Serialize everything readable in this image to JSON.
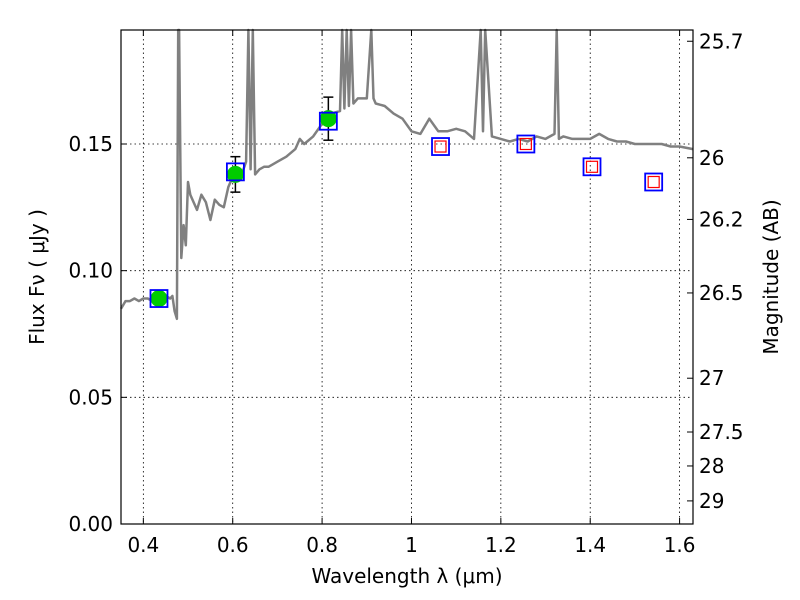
{
  "chart_data": {
    "type": "scatter",
    "xlabel": "Wavelength  λ (μm)",
    "ylabel": "Flux  Fν  ( μJy )",
    "y2label": "Magnitude (AB)",
    "xlim": [
      0.35,
      1.63
    ],
    "ylim": [
      0.0,
      0.195
    ],
    "grid": true,
    "x_ticks": [
      {
        "value": 0.4,
        "label": "0.4"
      },
      {
        "value": 0.6,
        "label": "0.6"
      },
      {
        "value": 0.8,
        "label": "0.8"
      },
      {
        "value": 1.0,
        "label": "1"
      },
      {
        "value": 1.2,
        "label": "1.2"
      },
      {
        "value": 1.4,
        "label": "1.4"
      },
      {
        "value": 1.6,
        "label": "1.6"
      }
    ],
    "y_ticks": [
      {
        "value": 0.0,
        "label": "0.00"
      },
      {
        "value": 0.05,
        "label": "0.05"
      },
      {
        "value": 0.1,
        "label": "0.10"
      },
      {
        "value": 0.15,
        "label": "0.15"
      }
    ],
    "y2_ticks": [
      {
        "value": 25.7,
        "label": "25.7"
      },
      {
        "value": 26.0,
        "label": "26"
      },
      {
        "value": 26.2,
        "label": "26.2"
      },
      {
        "value": 26.5,
        "label": "26.5"
      },
      {
        "value": 27.0,
        "label": "27"
      },
      {
        "value": 27.5,
        "label": "27.5"
      },
      {
        "value": 28.0,
        "label": "28"
      },
      {
        "value": 29.0,
        "label": "29"
      }
    ],
    "colors": {
      "spectrum": "#808080",
      "observed": "#00cc00",
      "errorbar": "#000000",
      "model_box": "#0000ff",
      "upper_box": "#ff0000"
    },
    "spectrum": {
      "x": [
        0.35,
        0.36,
        0.37,
        0.38,
        0.39,
        0.4,
        0.41,
        0.42,
        0.43,
        0.44,
        0.45,
        0.46,
        0.465,
        0.47,
        0.475,
        0.478,
        0.48,
        0.485,
        0.49,
        0.495,
        0.5,
        0.505,
        0.51,
        0.52,
        0.53,
        0.54,
        0.55,
        0.56,
        0.57,
        0.58,
        0.59,
        0.6,
        0.61,
        0.62,
        0.63,
        0.635,
        0.64,
        0.645,
        0.65,
        0.66,
        0.67,
        0.68,
        0.69,
        0.7,
        0.72,
        0.74,
        0.75,
        0.76,
        0.78,
        0.8,
        0.82,
        0.84,
        0.845,
        0.85,
        0.855,
        0.86,
        0.865,
        0.87,
        0.88,
        0.9,
        0.91,
        0.915,
        0.92,
        0.94,
        0.96,
        0.98,
        1.0,
        1.02,
        1.04,
        1.06,
        1.08,
        1.1,
        1.12,
        1.14,
        1.155,
        1.16,
        1.165,
        1.18,
        1.2,
        1.22,
        1.24,
        1.26,
        1.28,
        1.3,
        1.32,
        1.325,
        1.33,
        1.34,
        1.36,
        1.38,
        1.4,
        1.42,
        1.44,
        1.46,
        1.48,
        1.5,
        1.52,
        1.54,
        1.56,
        1.58,
        1.6,
        1.63
      ],
      "y": [
        0.085,
        0.088,
        0.088,
        0.089,
        0.088,
        0.089,
        0.089,
        0.088,
        0.089,
        0.09,
        0.09,
        0.089,
        0.09,
        0.084,
        0.081,
        0.195,
        0.195,
        0.105,
        0.118,
        0.11,
        0.135,
        0.13,
        0.128,
        0.124,
        0.13,
        0.127,
        0.12,
        0.128,
        0.126,
        0.125,
        0.133,
        0.137,
        0.139,
        0.138,
        0.143,
        0.195,
        0.14,
        0.195,
        0.138,
        0.14,
        0.141,
        0.141,
        0.142,
        0.143,
        0.145,
        0.148,
        0.152,
        0.15,
        0.153,
        0.158,
        0.162,
        0.163,
        0.195,
        0.164,
        0.195,
        0.165,
        0.195,
        0.166,
        0.168,
        0.168,
        0.195,
        0.168,
        0.166,
        0.165,
        0.162,
        0.16,
        0.155,
        0.154,
        0.16,
        0.155,
        0.155,
        0.156,
        0.155,
        0.152,
        0.195,
        0.155,
        0.195,
        0.153,
        0.152,
        0.151,
        0.152,
        0.151,
        0.153,
        0.152,
        0.154,
        0.195,
        0.152,
        0.153,
        0.152,
        0.152,
        0.152,
        0.154,
        0.152,
        0.151,
        0.151,
        0.15,
        0.15,
        0.15,
        0.15,
        0.149,
        0.149,
        0.148
      ]
    },
    "observed_points": [
      {
        "x": 0.435,
        "y": 0.089,
        "err": 0.0
      },
      {
        "x": 0.606,
        "y": 0.138,
        "err": 0.007
      },
      {
        "x": 0.814,
        "y": 0.16,
        "err": 0.0085
      }
    ],
    "model_boxes": [
      {
        "x": 0.435,
        "y": 0.089,
        "kind": "blue"
      },
      {
        "x": 0.606,
        "y": 0.139,
        "kind": "blue"
      },
      {
        "x": 0.814,
        "y": 0.159,
        "kind": "blue"
      },
      {
        "x": 1.065,
        "y": 0.149,
        "kind": "red"
      },
      {
        "x": 1.256,
        "y": 0.15,
        "kind": "red"
      },
      {
        "x": 1.404,
        "y": 0.141,
        "kind": "red"
      },
      {
        "x": 1.542,
        "y": 0.135,
        "kind": "red"
      }
    ]
  }
}
